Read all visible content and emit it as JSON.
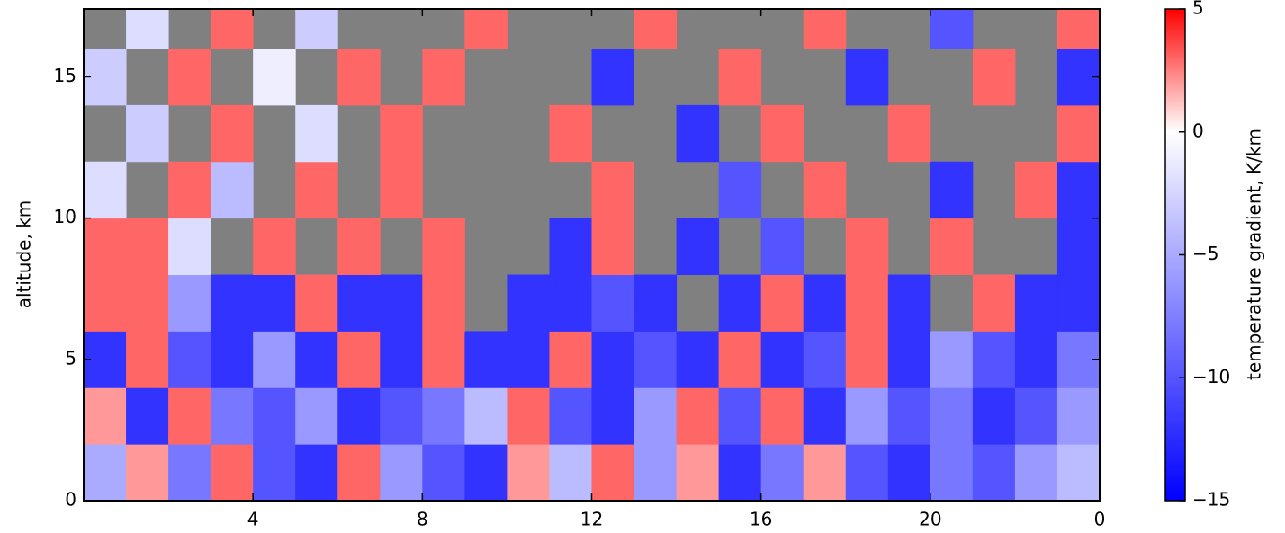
{
  "chart_data": {
    "type": "heatmap",
    "y_label": "altitude, km",
    "colorbar_label": "temperature gradient, K/km",
    "xbins": [
      0,
      1,
      2,
      3,
      4,
      5,
      6,
      7,
      8,
      9,
      10,
      11,
      12,
      13,
      14,
      15,
      16,
      17,
      18,
      19,
      20,
      21,
      22,
      23,
      24
    ],
    "ybins": [
      0,
      2,
      4,
      6,
      8,
      10,
      12,
      14,
      16,
      18
    ],
    "z": [
      [
        -5,
        2,
        -8,
        3,
        -10,
        -12,
        3,
        -6,
        -10,
        -12,
        2,
        -4,
        3,
        -6,
        2,
        -12,
        -8,
        2,
        -10,
        -12,
        -8,
        -10,
        -6,
        -4
      ],
      [
        2,
        -12,
        3,
        -8,
        -10,
        -6,
        -12,
        -10,
        -8,
        -4,
        3,
        -10,
        -12,
        -6,
        3,
        -10,
        3,
        -12,
        -6,
        -10,
        -8,
        -12,
        -10,
        -6
      ],
      [
        -12,
        3,
        -10,
        -12,
        -6,
        -12,
        3,
        -12,
        3,
        -12,
        -12,
        3,
        -12,
        -10,
        -12,
        3,
        -12,
        -10,
        3,
        -12,
        -6,
        -10,
        -12,
        -8
      ],
      [
        3,
        3,
        -6,
        -12,
        -12,
        3,
        -12,
        -12,
        3,
        null,
        -12,
        -12,
        -10,
        -12,
        null,
        -12,
        3,
        -12,
        3,
        -12,
        null,
        3,
        -12,
        -12
      ],
      [
        3,
        3,
        -2,
        null,
        3,
        null,
        3,
        null,
        3,
        null,
        null,
        -12,
        3,
        null,
        -12,
        null,
        -10,
        null,
        3,
        null,
        3,
        null,
        null,
        -12
      ],
      [
        -2,
        null,
        3,
        -4,
        null,
        3,
        null,
        3,
        null,
        null,
        null,
        null,
        3,
        null,
        null,
        -10,
        null,
        3,
        null,
        null,
        -12,
        null,
        3,
        -12
      ],
      [
        null,
        -3,
        null,
        3,
        null,
        -2,
        null,
        3,
        null,
        null,
        null,
        3,
        null,
        null,
        -12,
        null,
        3,
        null,
        null,
        3,
        null,
        null,
        null,
        3
      ],
      [
        -3,
        null,
        3,
        null,
        -1,
        null,
        3,
        null,
        3,
        null,
        null,
        null,
        -12,
        null,
        null,
        3,
        null,
        null,
        -12,
        null,
        null,
        3,
        null,
        -12
      ],
      [
        null,
        -2,
        null,
        3,
        null,
        -3,
        null,
        null,
        null,
        3,
        null,
        null,
        null,
        3,
        null,
        null,
        null,
        3,
        null,
        null,
        -10,
        null,
        null,
        3
      ]
    ],
    "xlim": [
      0,
      24
    ],
    "ylim": [
      0,
      17.4
    ],
    "xticks": [
      4,
      8,
      12,
      16,
      20,
      {
        "value": 24,
        "label": "0"
      }
    ],
    "yticks": [
      0,
      5,
      10,
      15
    ],
    "clim": [
      -15,
      5
    ],
    "cticks": [
      {
        "value": -15,
        "label": "−15"
      },
      {
        "value": -10,
        "label": "−10"
      },
      {
        "value": -5,
        "label": "−5"
      },
      0,
      5
    ],
    "cmap": [
      "#0000ff",
      "#ffffff",
      "#ff0000"
    ],
    "null_color": "#808080"
  }
}
